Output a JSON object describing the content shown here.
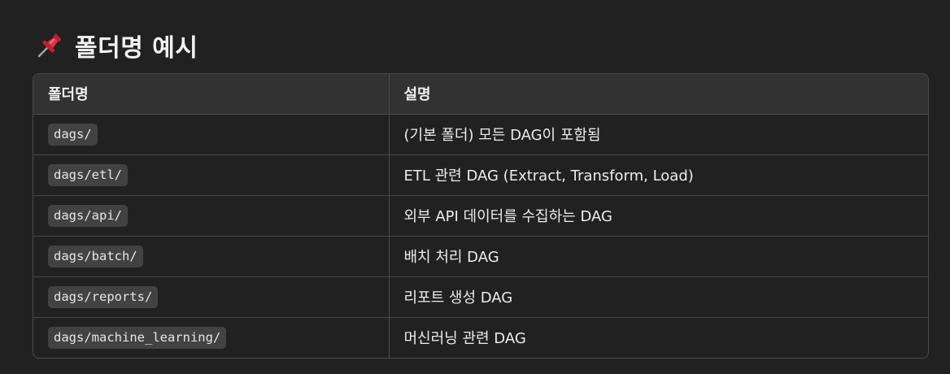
{
  "heading": {
    "icon": "pushpin-icon",
    "text": "폴더명 예시"
  },
  "table": {
    "headers": [
      "폴더명",
      "설명"
    ],
    "rows": [
      {
        "folder": "dags/",
        "description": "(기본 폴더) 모든 DAG이 포함됨"
      },
      {
        "folder": "dags/etl/",
        "description": "ETL 관련 DAG (Extract, Transform, Load)"
      },
      {
        "folder": "dags/api/",
        "description": "외부 API 데이터를 수집하는 DAG"
      },
      {
        "folder": "dags/batch/",
        "description": "배치 처리 DAG"
      },
      {
        "folder": "dags/reports/",
        "description": "리포트 생성 DAG"
      },
      {
        "folder": "dags/machine_learning/",
        "description": "머신러닝 관련 DAG"
      }
    ]
  },
  "colors": {
    "background": "#212121",
    "header_row": "#323232",
    "code_bg": "#424242",
    "pin_red": "#e0333f"
  }
}
